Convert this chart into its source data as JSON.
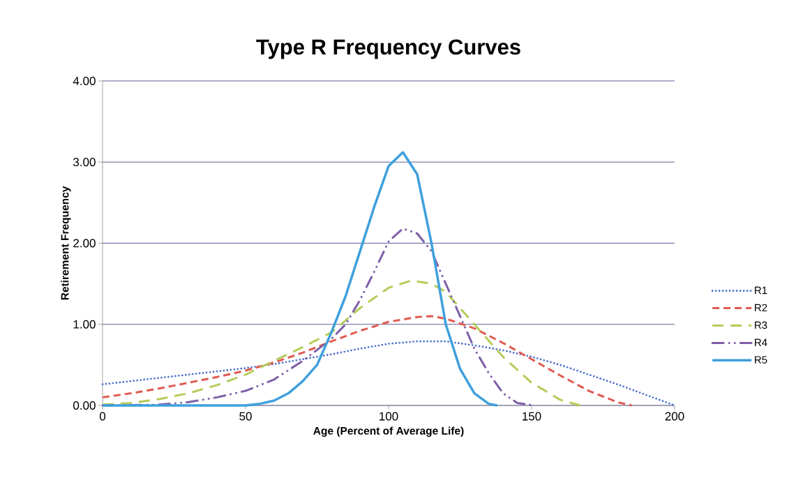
{
  "chart_data": {
    "type": "line",
    "title": "Type R Frequency Curves",
    "xlabel": "Age  (Percent of Average Life)",
    "ylabel": "Retirement  Frequency",
    "xlim": [
      0,
      200
    ],
    "xticks": [
      0,
      50,
      100,
      150,
      200
    ],
    "ylim": [
      0,
      4
    ],
    "yticks": [
      {
        "value": 0,
        "label": "0.00"
      },
      {
        "value": 1,
        "label": "1.00"
      },
      {
        "value": 2,
        "label": "2.00"
      },
      {
        "value": 3,
        "label": "3.00"
      },
      {
        "value": 4,
        "label": "4.00"
      }
    ],
    "grid": "y",
    "legend": "right",
    "series": [
      {
        "name": "R1",
        "color": "#4a6fd0",
        "line_style": "dotted",
        "x": [
          0,
          10,
          20,
          30,
          40,
          50,
          60,
          70,
          80,
          90,
          100,
          110,
          120,
          130,
          140,
          150,
          160,
          170,
          180,
          190,
          200
        ],
        "values": [
          0.26,
          0.3,
          0.34,
          0.38,
          0.42,
          0.46,
          0.51,
          0.57,
          0.63,
          0.7,
          0.76,
          0.79,
          0.79,
          0.74,
          0.68,
          0.6,
          0.5,
          0.38,
          0.26,
          0.13,
          0.0
        ]
      },
      {
        "name": "R2",
        "color": "#e05a50",
        "line_style": "dashed",
        "x": [
          0,
          10,
          20,
          30,
          40,
          50,
          60,
          70,
          80,
          90,
          100,
          110,
          115,
          120,
          130,
          140,
          150,
          160,
          170,
          180,
          185
        ],
        "values": [
          0.1,
          0.15,
          0.21,
          0.28,
          0.35,
          0.43,
          0.53,
          0.65,
          0.79,
          0.92,
          1.03,
          1.09,
          1.1,
          1.07,
          0.95,
          0.77,
          0.57,
          0.37,
          0.18,
          0.04,
          0.0
        ]
      },
      {
        "name": "R3",
        "color": "#b5cc5a",
        "line_style": "longdashed",
        "x": [
          0,
          10,
          20,
          30,
          40,
          50,
          60,
          70,
          80,
          90,
          100,
          108,
          115,
          120,
          130,
          140,
          150,
          160,
          167
        ],
        "values": [
          0.01,
          0.03,
          0.08,
          0.15,
          0.25,
          0.38,
          0.55,
          0.72,
          0.9,
          1.2,
          1.45,
          1.54,
          1.5,
          1.4,
          1.0,
          0.6,
          0.28,
          0.07,
          0.0
        ]
      },
      {
        "name": "R4",
        "color": "#7e5fa8",
        "line_style": "dashdotdotted",
        "x": [
          0,
          20,
          30,
          40,
          50,
          60,
          70,
          80,
          85,
          90,
          95,
          100,
          105,
          110,
          115,
          120,
          125,
          130,
          135,
          140,
          145,
          151
        ],
        "values": [
          0.0,
          0.01,
          0.04,
          0.1,
          0.18,
          0.32,
          0.55,
          0.82,
          1.0,
          1.3,
          1.65,
          2.02,
          2.18,
          2.12,
          1.9,
          1.5,
          1.1,
          0.7,
          0.4,
          0.15,
          0.03,
          0.0
        ]
      },
      {
        "name": "R5",
        "color": "#3ea0dc",
        "line_style": "solid",
        "x": [
          0,
          50,
          55,
          60,
          65,
          70,
          75,
          80,
          85,
          90,
          95,
          100,
          105,
          110,
          115,
          120,
          125,
          130,
          135,
          138
        ],
        "values": [
          0.0,
          0.0,
          0.02,
          0.06,
          0.15,
          0.3,
          0.5,
          0.9,
          1.35,
          1.9,
          2.45,
          2.95,
          3.12,
          2.85,
          2.0,
          1.0,
          0.45,
          0.15,
          0.02,
          0.0
        ]
      }
    ]
  }
}
